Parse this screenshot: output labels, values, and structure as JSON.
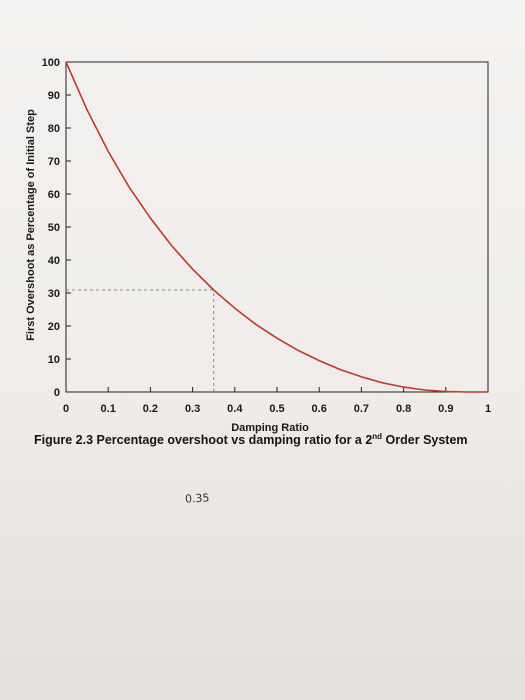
{
  "chart_data": {
    "type": "line",
    "title": "",
    "xlabel": "Damping Ratio",
    "ylabel": "First Overshoot as Percentage of Initial Step",
    "xlim": [
      0,
      1
    ],
    "ylim": [
      0,
      100
    ],
    "x_ticks": [
      "0",
      "0.1",
      "0.2",
      "0.3",
      "0.4",
      "0.5",
      "0.6",
      "0.7",
      "0.8",
      "0.9",
      "1"
    ],
    "y_ticks": [
      "0",
      "10",
      "20",
      "30",
      "40",
      "50",
      "60",
      "70",
      "80",
      "90",
      "100"
    ],
    "grid": false,
    "series": [
      {
        "color": "#c0392b",
        "x": [
          0,
          0.05,
          0.1,
          0.15,
          0.2,
          0.25,
          0.3,
          0.35,
          0.4,
          0.45,
          0.5,
          0.55,
          0.6,
          0.65,
          0.7,
          0.75,
          0.8,
          0.85,
          0.9,
          0.95,
          1.0
        ],
        "y": [
          100,
          85.5,
          72.9,
          62.0,
          52.7,
          44.4,
          37.2,
          30.9,
          25.4,
          20.5,
          16.3,
          12.6,
          9.5,
          6.8,
          4.6,
          2.8,
          1.5,
          0.6,
          0.15,
          0.0,
          0.0
        ]
      }
    ],
    "annotations": [
      {
        "type": "dashed-hline",
        "y": 30.9,
        "x_from": 0,
        "x_to": 0.35
      },
      {
        "type": "dashed-vline",
        "x": 0.35,
        "y_from": 0,
        "y_to": 30.9
      }
    ]
  },
  "caption": {
    "prefix": "Figure 2.3 Percentage overshoot vs damping ratio for a 2",
    "superscript": "nd",
    "suffix": " Order System"
  },
  "handwritten_note": "0.35"
}
